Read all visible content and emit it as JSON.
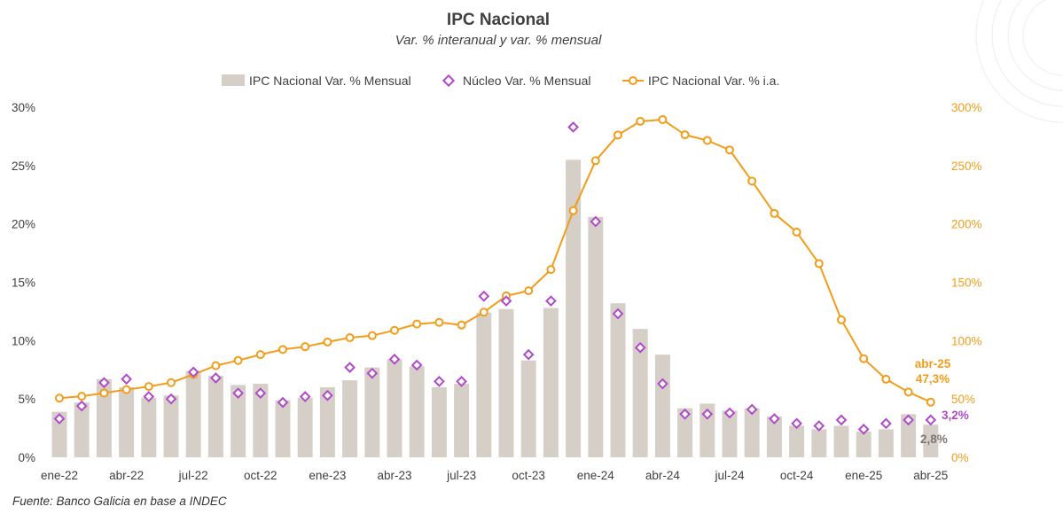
{
  "title": "IPC Nacional",
  "subtitle": "Var. % interanual y var. % mensual",
  "source": "Fuente: Banco Galicia en base a INDEC",
  "colors": {
    "bars": "#d5cfc8",
    "nucleo": "#b04ac8",
    "line": "#f29d1a",
    "annot_bar": "#7f7570",
    "text": "#404040"
  },
  "chart_data": {
    "type": "bar",
    "title": "IPC Nacional",
    "subtitle": "Var. % interanual y var. % mensual",
    "categories": [
      "ene-22",
      "feb-22",
      "mar-22",
      "abr-22",
      "may-22",
      "jun-22",
      "jul-22",
      "ago-22",
      "sep-22",
      "oct-22",
      "nov-22",
      "dic-22",
      "ene-23",
      "feb-23",
      "mar-23",
      "abr-23",
      "may-23",
      "jun-23",
      "jul-23",
      "ago-23",
      "sep-23",
      "oct-23",
      "nov-23",
      "dic-23",
      "ene-24",
      "feb-24",
      "mar-24",
      "abr-24",
      "may-24",
      "jun-24",
      "jul-24",
      "ago-24",
      "sep-24",
      "oct-24",
      "nov-24",
      "dic-24",
      "ene-25",
      "feb-25",
      "mar-25",
      "abr-25"
    ],
    "x_tick_labels": [
      "ene-22",
      "abr-22",
      "jul-22",
      "oct-22",
      "ene-23",
      "abr-23",
      "jul-23",
      "oct-23",
      "ene-24",
      "abr-24",
      "jul-24",
      "oct-24",
      "ene-25",
      "abr-25"
    ],
    "series": [
      {
        "name": "IPC Nacional Var. % Mensual",
        "type": "bar",
        "axis": "left",
        "values": [
          3.9,
          4.7,
          6.7,
          6.0,
          5.1,
          5.3,
          7.4,
          7.0,
          6.2,
          6.3,
          4.9,
          5.1,
          6.0,
          6.6,
          7.7,
          8.4,
          7.8,
          6.0,
          6.3,
          12.4,
          12.7,
          8.3,
          12.8,
          25.5,
          20.6,
          13.2,
          11.0,
          8.8,
          4.2,
          4.6,
          4.0,
          4.2,
          3.5,
          2.7,
          2.4,
          2.7,
          2.2,
          2.4,
          3.7,
          2.8
        ]
      },
      {
        "name": "Núcleo Var. % Mensual",
        "type": "scatter",
        "axis": "left",
        "values": [
          3.3,
          4.4,
          6.4,
          6.7,
          5.2,
          5.0,
          7.3,
          6.8,
          5.5,
          5.5,
          4.7,
          5.2,
          5.3,
          7.7,
          7.2,
          8.4,
          7.9,
          6.5,
          6.5,
          13.8,
          13.4,
          8.8,
          13.4,
          28.3,
          20.2,
          12.3,
          9.4,
          6.3,
          3.7,
          3.7,
          3.8,
          4.1,
          3.3,
          2.9,
          2.7,
          3.2,
          2.4,
          2.9,
          3.2,
          3.2
        ]
      },
      {
        "name": "IPC Nacional Var. % i.a.",
        "type": "line",
        "axis": "right",
        "values": [
          50.7,
          52.3,
          55.1,
          58.0,
          60.7,
          64.0,
          71.0,
          78.5,
          83.0,
          88.0,
          92.4,
          94.8,
          98.8,
          102.5,
          104.3,
          108.8,
          114.2,
          115.6,
          113.4,
          124.4,
          138.3,
          142.7,
          160.9,
          211.4,
          254.2,
          276.2,
          287.9,
          289.4,
          276.4,
          271.5,
          263.4,
          236.7,
          209.0,
          193.0,
          166.0,
          117.8,
          84.5,
          66.9,
          55.9,
          47.3
        ]
      }
    ],
    "y_left": {
      "ylim": [
        0,
        30
      ],
      "ticks": [
        "0%",
        "5%",
        "10%",
        "15%",
        "20%",
        "25%",
        "30%"
      ]
    },
    "y_right": {
      "ylim": [
        0,
        300
      ],
      "ticks": [
        "0%",
        "50%",
        "100%",
        "150%",
        "200%",
        "250%",
        "300%"
      ]
    },
    "legend_position": "top",
    "grid": false,
    "annotations": {
      "ia_month": "abr-25",
      "ia_value": "47,3%",
      "nucleo_value": "3,2%",
      "bar_value": "2,8%"
    }
  }
}
